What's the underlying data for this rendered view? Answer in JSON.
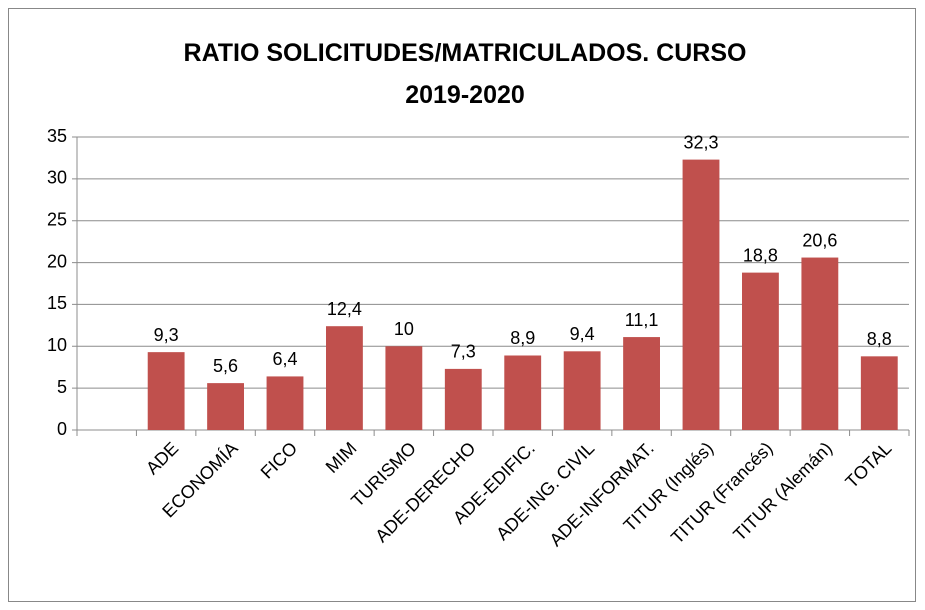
{
  "chart_data": {
    "type": "bar",
    "title": "RATIO SOLICITUDES/MATRICULADOS. CURSO 2019-2020",
    "categories": [
      null,
      "ADE",
      "ECONOMÍA",
      "FICO",
      "MIM",
      "TURISMO",
      "ADE-DERECHO",
      "ADE-EDIFIC.",
      "ADE-ING. CIVIL",
      "ADE-INFORMAT.",
      "TITUR (Inglés)",
      "TITUR (Francés)",
      "TITUR (Alemán)",
      "TOTAL"
    ],
    "values": [
      null,
      9.3,
      5.6,
      6.4,
      12.4,
      10,
      7.3,
      8.9,
      9.4,
      11.1,
      32.3,
      18.8,
      20.6,
      8.8
    ],
    "value_labels": [
      null,
      "9,3",
      "5,6",
      "6,4",
      "12,4",
      "10",
      "7,3",
      "8,9",
      "9,4",
      "11,1",
      "32,3",
      "18,8",
      "20,6",
      "8,8"
    ],
    "color": "#c0504d",
    "ylim": [
      0,
      35
    ],
    "yticks": [
      0,
      5,
      10,
      15,
      20,
      25,
      30,
      35
    ],
    "grid": true
  }
}
